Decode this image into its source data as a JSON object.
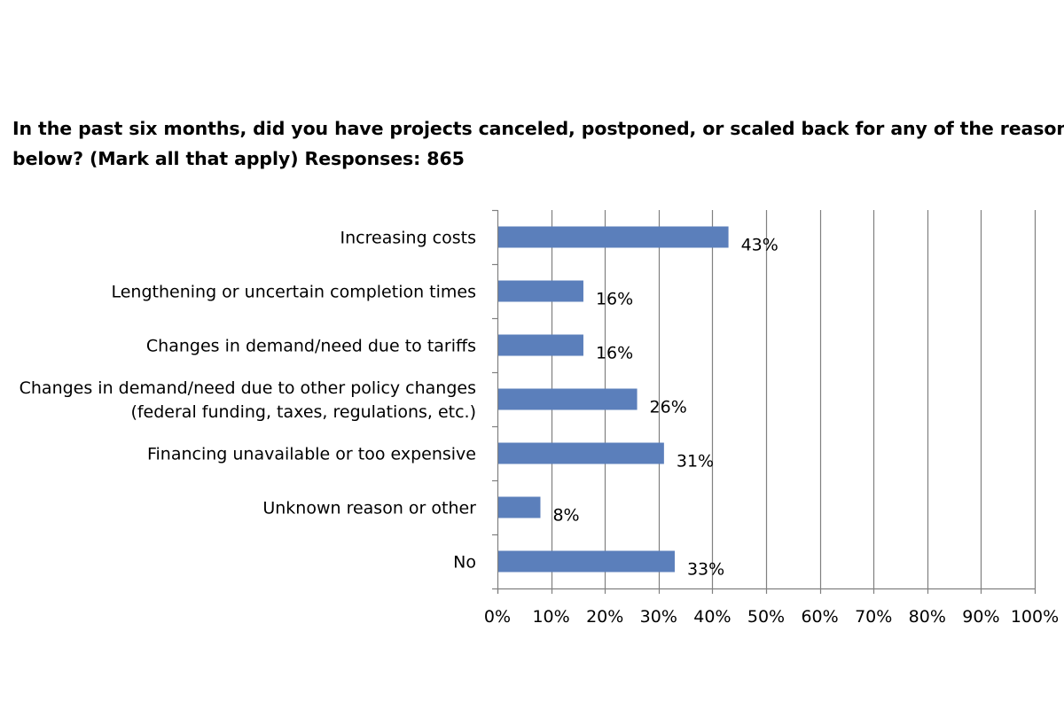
{
  "chart_data": {
    "type": "bar",
    "orientation": "horizontal",
    "title_lines": [
      "In the past six months, did you have projects canceled, postponed, or scaled back for any of the reasons",
      "below? (Mark all that apply)  Responses: 865"
    ],
    "categories": [
      [
        "Increasing costs"
      ],
      [
        "Lengthening or uncertain completion times"
      ],
      [
        "Changes in demand/need due to tariffs"
      ],
      [
        "Changes in demand/need due to other policy changes",
        "(federal funding, taxes, regulations, etc.)"
      ],
      [
        "Financing unavailable or too expensive"
      ],
      [
        "Unknown reason or other"
      ],
      [
        "No"
      ]
    ],
    "values": [
      43,
      16,
      16,
      26,
      31,
      8,
      33
    ],
    "data_labels": [
      "43%",
      "16%",
      "16%",
      "26%",
      "31%",
      "8%",
      "33%"
    ],
    "xlim": [
      0,
      100
    ],
    "x_ticks": [
      0,
      10,
      20,
      30,
      40,
      50,
      60,
      70,
      80,
      90,
      100
    ],
    "x_tick_labels": [
      "0%",
      "10%",
      "20%",
      "30%",
      "40%",
      "50%",
      "60%",
      "70%",
      "80%",
      "90%",
      "100%"
    ],
    "grid": true,
    "legend": "none",
    "bar_color": "#5b7fbb",
    "grid_color": "#808080"
  }
}
